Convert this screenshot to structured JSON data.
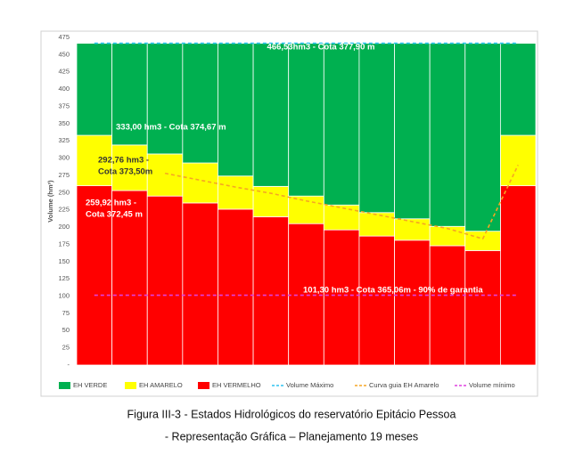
{
  "chart_data": {
    "type": "bar",
    "stacked": true,
    "y_label": "Volume (hm³)",
    "categories": [
      null,
      null,
      null,
      null,
      null,
      null,
      null,
      null,
      null,
      null,
      null,
      null,
      null
    ],
    "ylim": [
      0,
      475
    ],
    "yticks": [
      {
        "value": 0,
        "label": "-"
      },
      25,
      50,
      75,
      100,
      125,
      150,
      175,
      200,
      225,
      250,
      275,
      300,
      325,
      350,
      375,
      400,
      425,
      450,
      475
    ],
    "series": [
      {
        "name": "EH VERMELHO",
        "color": "#ff0000",
        "values": [
          260,
          253,
          245,
          235,
          226,
          215,
          205,
          196,
          187,
          181,
          173,
          166,
          260
        ]
      },
      {
        "name": "EH AMARELO",
        "color": "#ffff00",
        "values": [
          73,
          66,
          61,
          58,
          48,
          44,
          40,
          36,
          34,
          31,
          28,
          28,
          73
        ]
      },
      {
        "name": "EH VERDE",
        "color": "#00b050",
        "values": [
          133.5,
          147.5,
          160.5,
          173.5,
          192.5,
          207.5,
          221.5,
          234.5,
          245.5,
          254.5,
          265.5,
          272.5,
          133.5
        ]
      },
      {
        "name": "Volume Máximo",
        "type": "line",
        "color": "#2ec4f0",
        "values": [
          466.53,
          466.53,
          466.53,
          466.53,
          466.53,
          466.53,
          466.53,
          466.53,
          466.53,
          466.53,
          466.53,
          466.53,
          466.53
        ]
      },
      {
        "name": "Curva guia EH Amarelo",
        "type": "line",
        "color": "#f5a623",
        "values": [
          null,
          null,
          278,
          268,
          258,
          249,
          238,
          228,
          218,
          208,
          198,
          183,
          290
        ]
      },
      {
        "name": "Volume mínimo",
        "type": "line",
        "color": "#e040e0",
        "values": [
          101.3,
          101.3,
          101.3,
          101.3,
          101.3,
          101.3,
          101.3,
          101.3,
          101.3,
          101.3,
          101.3,
          101.3,
          101.3
        ]
      }
    ],
    "annotations": [
      [
        "466,53hm3 - Cota  377,90 m"
      ],
      [
        "333,00 hm3 - Cota 374,67 m"
      ],
      [
        "292,76 hm3 -",
        "Cota 373,50m"
      ],
      [
        "259,92 hm3 -",
        "Cota 372,45 m"
      ],
      [
        "101,30 hm3 - Cota 365,06m - 90% de garantia"
      ]
    ]
  },
  "caption": [
    "Figura III-3 - Estados Hidrológicos do reservatório Epitácio Pessoa",
    "- Representação Gráfica – Planejamento 19 meses"
  ]
}
